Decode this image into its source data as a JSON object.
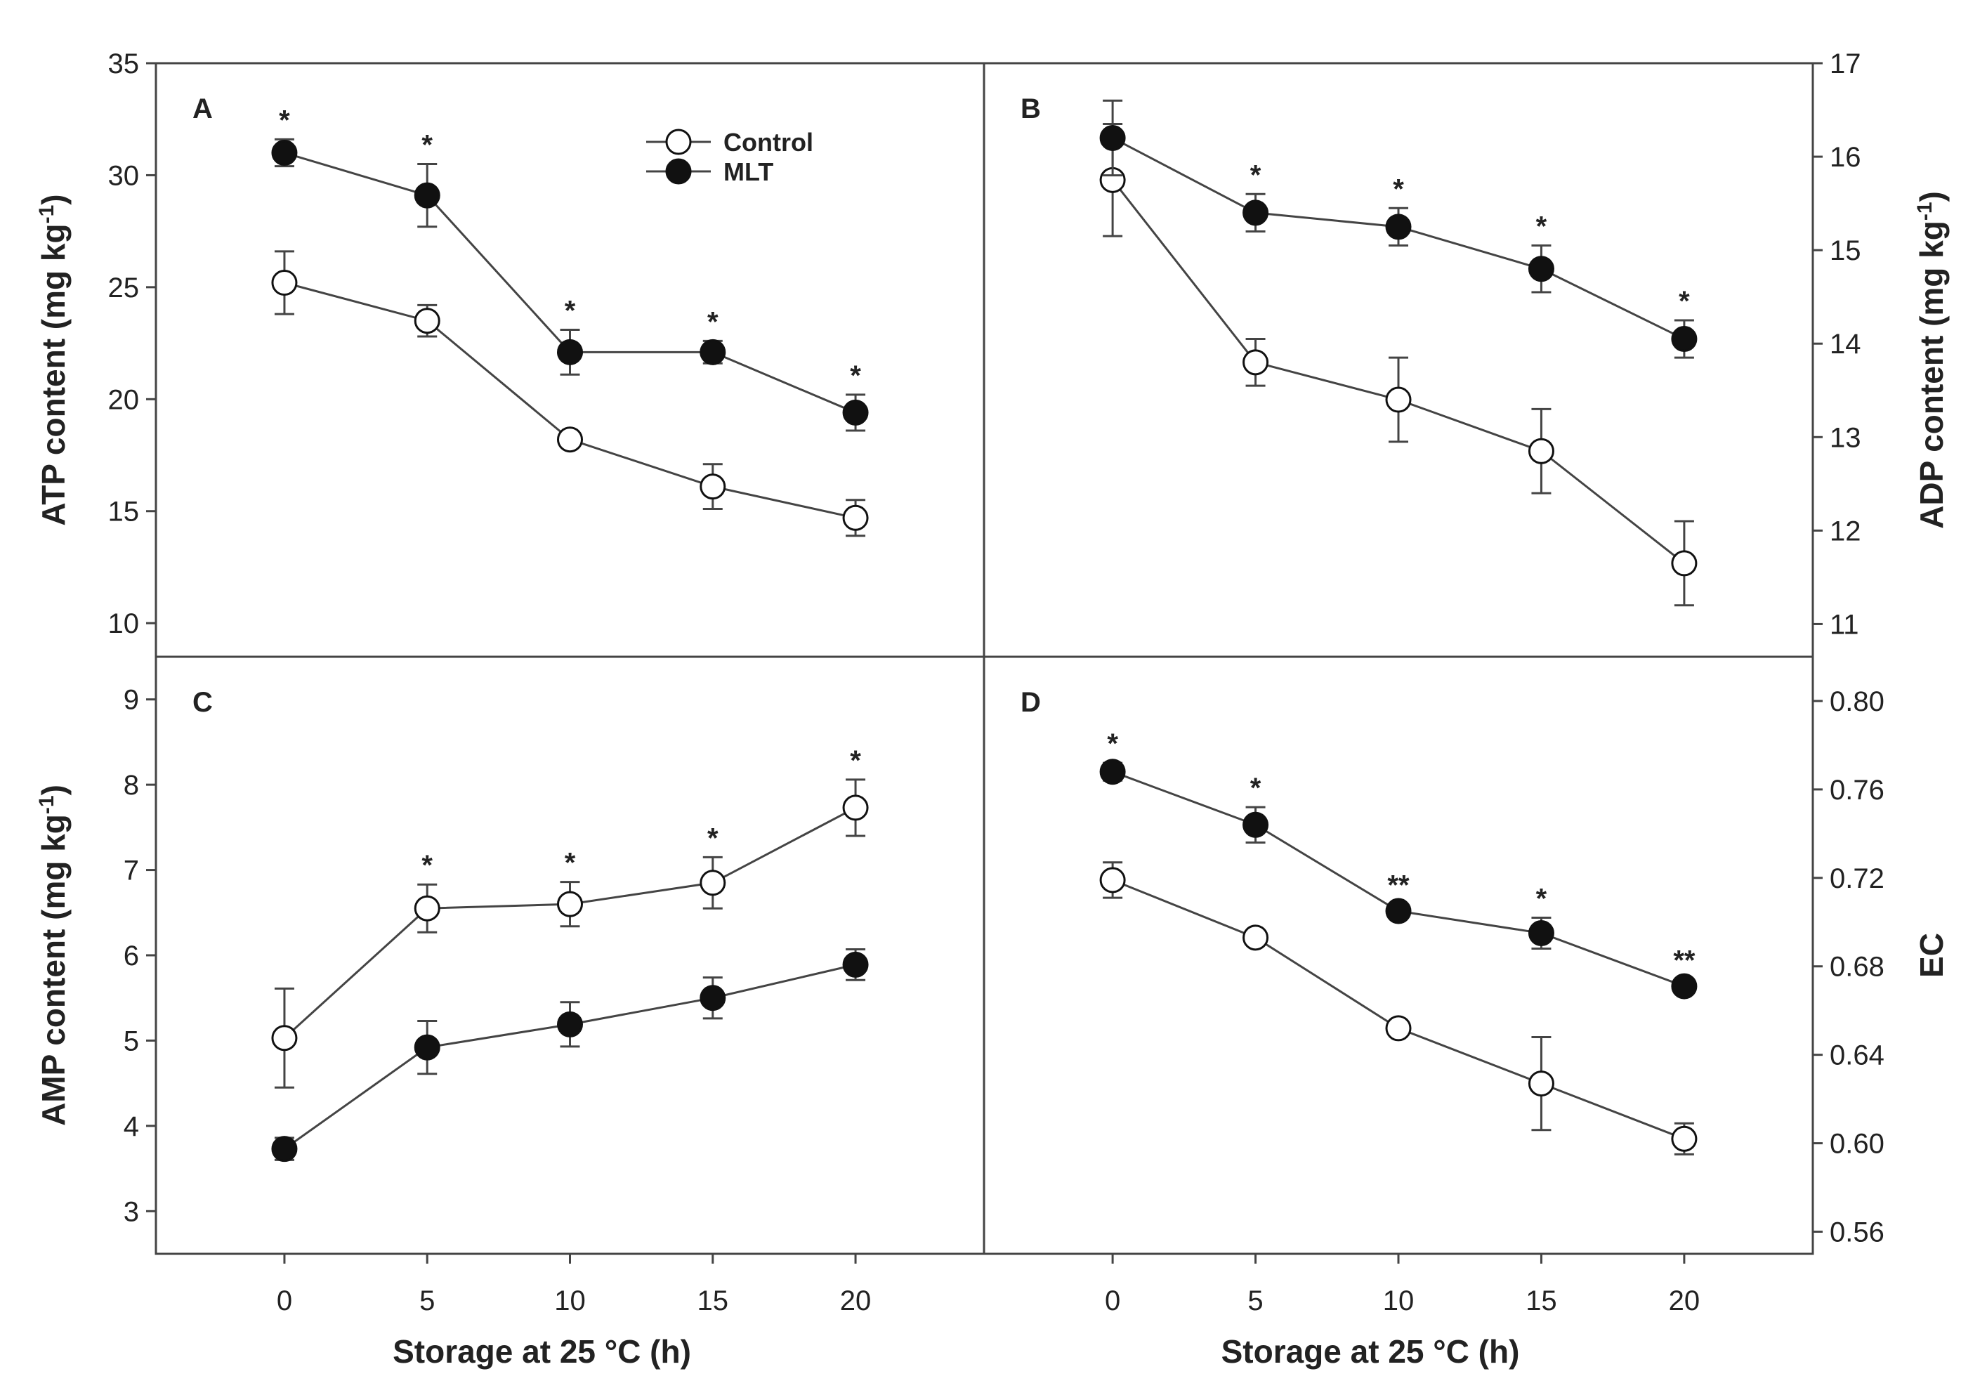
{
  "chart_data": [
    {
      "panel": "A",
      "type": "line",
      "ylabel": "ATP content (mg kg",
      "ylabel_sup": "-1",
      "ylabel_end": ")",
      "x": [
        0,
        5,
        10,
        15,
        20
      ],
      "xlim": [
        -4.5,
        24.5
      ],
      "ylim": [
        8.5,
        35
      ],
      "yticks": [
        10,
        15,
        20,
        25,
        30,
        35
      ],
      "yaxis_side": "left",
      "series": [
        {
          "name": "Control",
          "marker": "open",
          "values": [
            25.2,
            23.5,
            18.2,
            16.1,
            14.7
          ],
          "errors": [
            1.4,
            0.7,
            0.2,
            1.0,
            0.8
          ]
        },
        {
          "name": "MLT",
          "marker": "filled",
          "values": [
            31.0,
            29.1,
            22.1,
            22.1,
            19.4
          ],
          "errors": [
            0.6,
            1.4,
            1.0,
            0.5,
            0.8
          ]
        }
      ],
      "significance": [
        "*",
        "*",
        "*",
        "*",
        "*"
      ]
    },
    {
      "panel": "B",
      "type": "line",
      "ylabel": "ADP content (mg kg",
      "ylabel_sup": "-1",
      "ylabel_end": ")",
      "x": [
        0,
        5,
        10,
        15,
        20
      ],
      "xlim": [
        -4.5,
        24.5
      ],
      "ylim": [
        10.65,
        17
      ],
      "yticks": [
        11,
        12,
        13,
        14,
        15,
        16,
        17
      ],
      "yaxis_side": "right",
      "series": [
        {
          "name": "Control",
          "marker": "open",
          "values": [
            15.75,
            13.8,
            13.4,
            12.85,
            11.65
          ],
          "errors": [
            0.6,
            0.25,
            0.45,
            0.45,
            0.45
          ]
        },
        {
          "name": "MLT",
          "marker": "filled",
          "values": [
            16.2,
            15.4,
            15.25,
            14.8,
            14.05
          ],
          "errors": [
            0.4,
            0.2,
            0.2,
            0.25,
            0.2
          ]
        }
      ],
      "significance": [
        "",
        "*",
        "*",
        "*",
        "*"
      ]
    },
    {
      "panel": "C",
      "type": "line",
      "ylabel": "AMP content (mg kg",
      "ylabel_sup": "-1",
      "ylabel_end": ")",
      "x": [
        0,
        5,
        10,
        15,
        20
      ],
      "xlim": [
        -4.5,
        24.5
      ],
      "ylim": [
        2.5,
        9.5
      ],
      "yticks": [
        3,
        4,
        5,
        6,
        7,
        8,
        9
      ],
      "yaxis_side": "left",
      "xlabel": "Storage at 25 °C (h)",
      "xticks": [
        0,
        5,
        10,
        15,
        20
      ],
      "series": [
        {
          "name": "Control",
          "marker": "open",
          "values": [
            5.03,
            6.55,
            6.6,
            6.85,
            7.73
          ],
          "errors": [
            0.58,
            0.28,
            0.26,
            0.3,
            0.33
          ]
        },
        {
          "name": "MLT",
          "marker": "filled",
          "values": [
            3.73,
            4.92,
            5.19,
            5.5,
            5.89
          ],
          "errors": [
            0.13,
            0.31,
            0.26,
            0.24,
            0.18
          ]
        }
      ],
      "significance": [
        "",
        "*",
        "*",
        "*",
        "*"
      ]
    },
    {
      "panel": "D",
      "type": "line",
      "ylabel": "EC",
      "ylabel_sup": "",
      "ylabel_end": "",
      "x": [
        0,
        5,
        10,
        15,
        20
      ],
      "xlim": [
        -4.5,
        24.5
      ],
      "ylim": [
        0.55,
        0.82
      ],
      "yticks": [
        "0.56",
        "0.60",
        "0.64",
        "0.68",
        "0.72",
        "0.76",
        "0.80"
      ],
      "yaxis_side": "right",
      "xlabel": "Storage at 25 °C (h)",
      "xticks": [
        0,
        5,
        10,
        15,
        20
      ],
      "series": [
        {
          "name": "Control",
          "marker": "open",
          "values": [
            0.719,
            0.693,
            0.652,
            0.627,
            0.602
          ],
          "errors": [
            0.008,
            0.003,
            0.003,
            0.021,
            0.007
          ]
        },
        {
          "name": "MLT",
          "marker": "filled",
          "values": [
            0.768,
            0.744,
            0.705,
            0.695,
            0.671
          ],
          "errors": [
            0.004,
            0.008,
            0.003,
            0.007,
            0.003
          ]
        }
      ],
      "significance": [
        "*",
        "*",
        "**",
        "*",
        "**"
      ]
    }
  ],
  "legend": [
    {
      "label": "Control",
      "marker": "open"
    },
    {
      "label": "MLT",
      "marker": "filled"
    }
  ]
}
